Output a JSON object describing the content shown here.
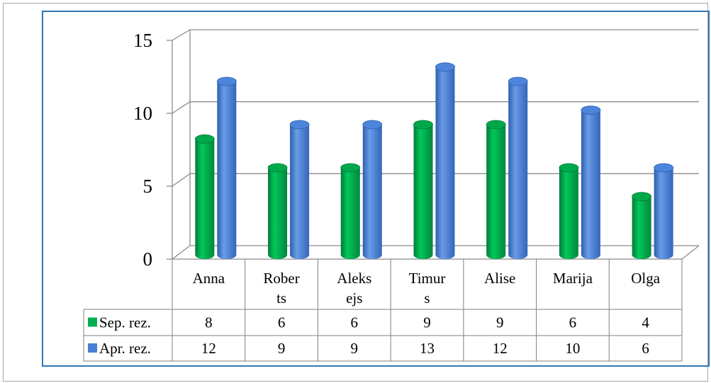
{
  "chart_data": {
    "type": "bar",
    "style": "3d-cylinder-with-data-table",
    "categories": [
      "Anna",
      "Roberts",
      "Aleksejs",
      "Timurs",
      "Alise",
      "Marija",
      "Olga"
    ],
    "category_display": [
      [
        "Anna"
      ],
      [
        "Rober",
        "ts"
      ],
      [
        "Aleks",
        "ejs"
      ],
      [
        "Timur",
        "s"
      ],
      [
        "Alise"
      ],
      [
        "Marija"
      ],
      [
        "Olga"
      ]
    ],
    "series": [
      {
        "name": "Sep. rez.",
        "values": [
          8,
          6,
          6,
          9,
          9,
          6,
          4
        ],
        "color": "#00b050"
      },
      {
        "name": "Apr. rez.",
        "values": [
          12,
          9,
          9,
          13,
          12,
          10,
          6
        ],
        "color": "#4a7fd6"
      }
    ],
    "yticks": [
      "0",
      "5",
      "10",
      "15"
    ],
    "ylim": [
      0,
      15
    ],
    "grid": true,
    "legend": "data-table-left",
    "frame_color": "#2e75b6"
  }
}
